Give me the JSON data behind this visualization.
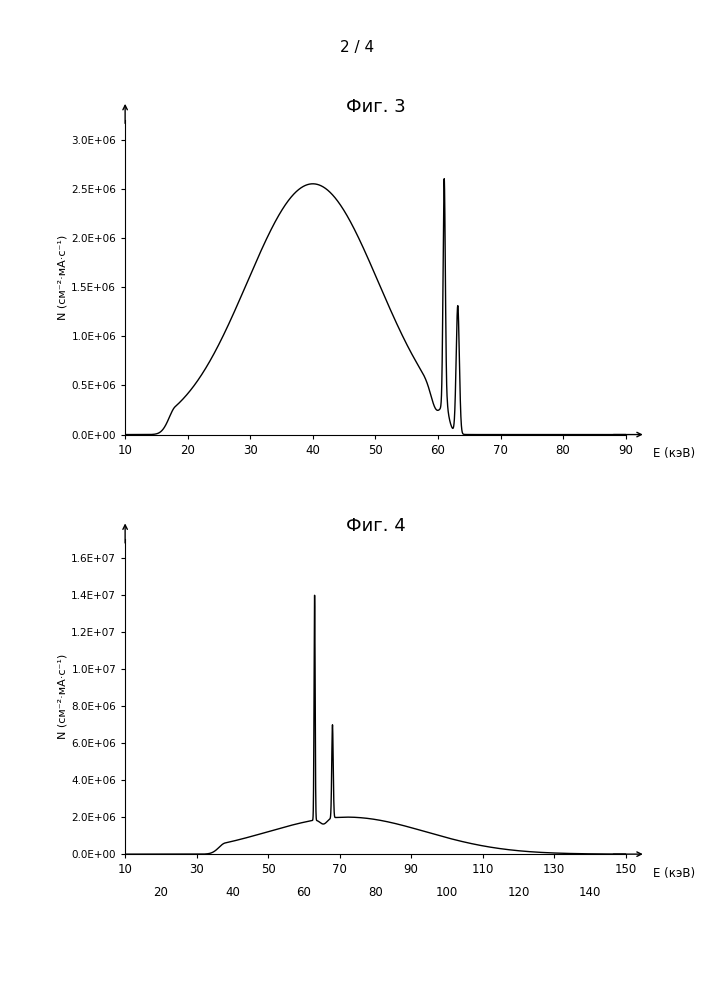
{
  "page_label": "2 / 4",
  "fig3_title": "Фиг. 3",
  "fig4_title": "Фиг. 4",
  "ylabel": "N (см⁻²·мА·с⁻¹)",
  "xlabel": "E (кэВ)",
  "fig3_xlim": [
    10,
    90
  ],
  "fig3_ylim": [
    0,
    3200000.0
  ],
  "fig3_yticks": [
    0.0,
    500000.0,
    1000000.0,
    1500000.0,
    2000000.0,
    2500000.0,
    3000000.0
  ],
  "fig3_ytick_labels": [
    "0.0E+00",
    "0.5E+06",
    "1.0E+06",
    "1.5E+06",
    "2.0E+06",
    "2.5E+06",
    "3.0E+06"
  ],
  "fig3_xticks": [
    10,
    20,
    30,
    40,
    50,
    60,
    70,
    80,
    90
  ],
  "fig4_xlim": [
    10,
    150
  ],
  "fig4_ylim": [
    0,
    17000000.0
  ],
  "fig4_yticks": [
    0.0,
    2000000.0,
    4000000.0,
    6000000.0,
    8000000.0,
    10000000.0,
    12000000.0,
    14000000.0,
    16000000.0
  ],
  "fig4_ytick_labels": [
    "0.0E+00",
    "2.0E+06",
    "4.0E+06",
    "6.0E+06",
    "8.0E+06",
    "1.0E+07",
    "1.2E+07",
    "1.4E+07",
    "1.6E+07"
  ],
  "fig4_xticks_odd": [
    10,
    30,
    50,
    70,
    90,
    110,
    130,
    150
  ],
  "fig4_xticks_even": [
    20,
    40,
    60,
    80,
    100,
    120,
    140
  ],
  "line_color": "#000000",
  "background_color": "#ffffff"
}
